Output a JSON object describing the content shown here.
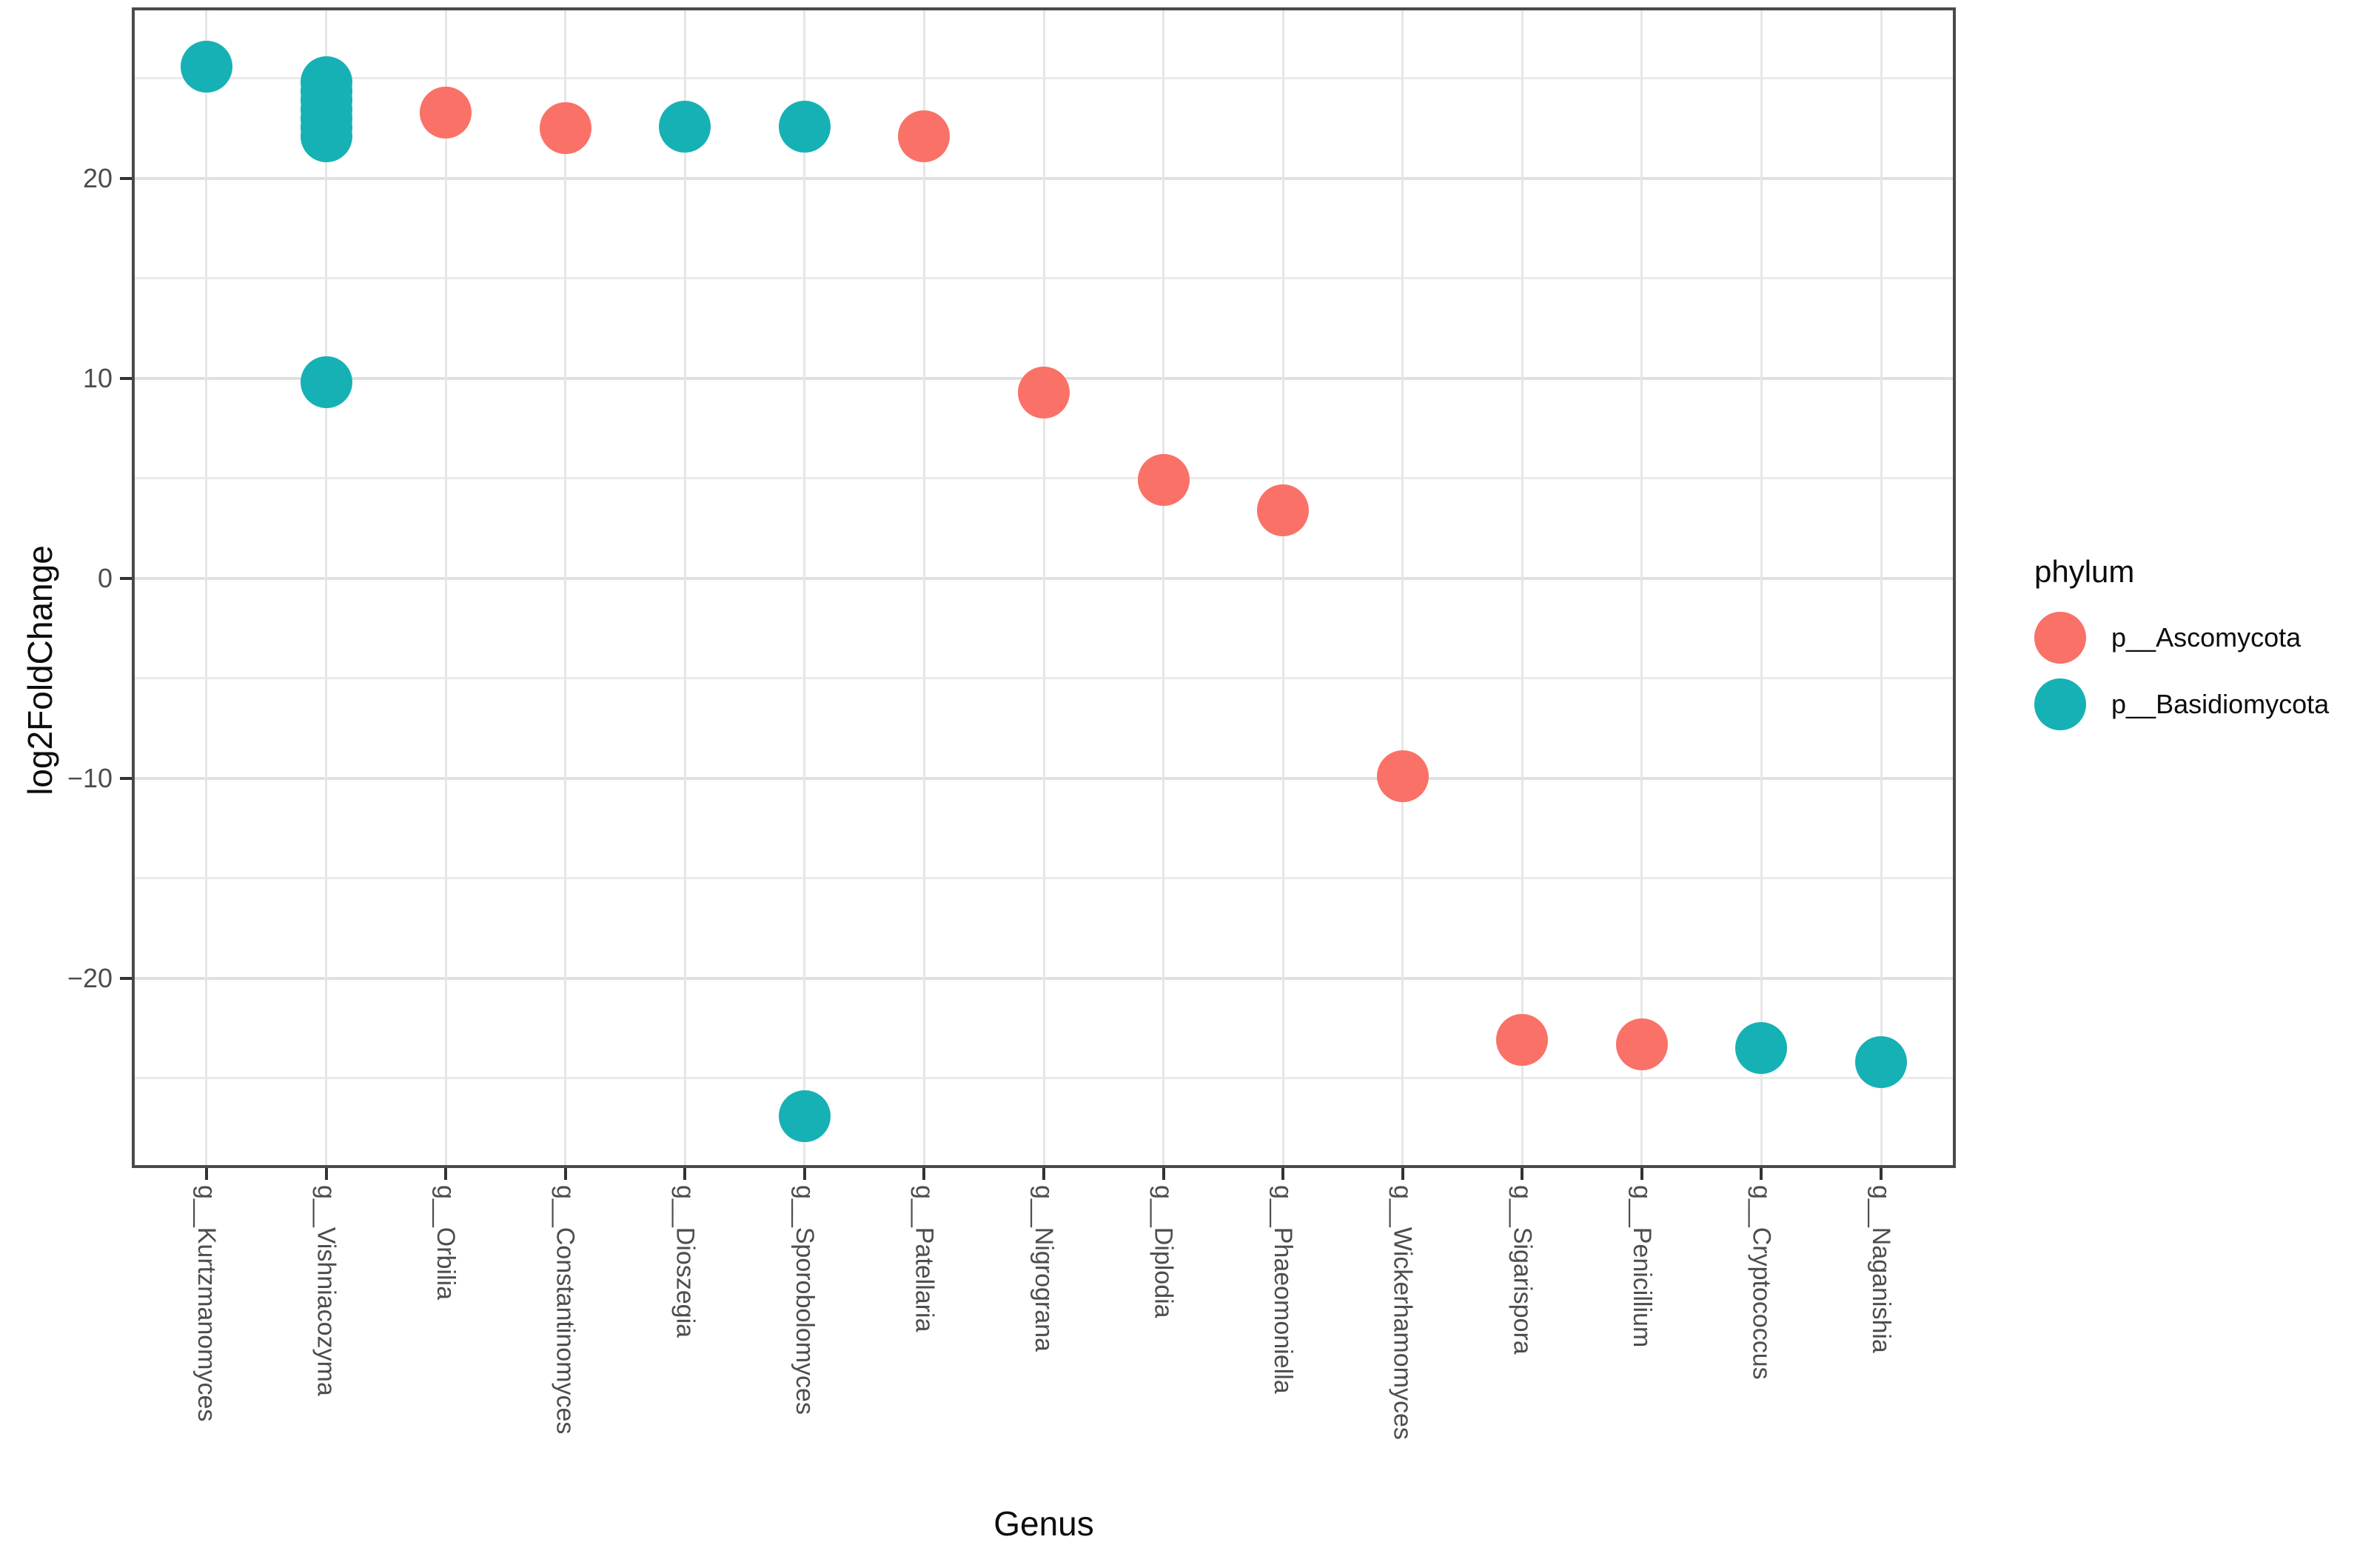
{
  "chart_data": {
    "type": "scatter",
    "title": "",
    "xlabel": "Genus",
    "ylabel": "log2FoldChange",
    "grid": "on",
    "ylim": [
      -29.35,
      28.4
    ],
    "y_ticks": [
      {
        "value": 20,
        "label": "20"
      },
      {
        "value": 10,
        "label": "10"
      },
      {
        "value": 0,
        "label": "0"
      },
      {
        "value": -10,
        "label": "−10"
      },
      {
        "value": -20,
        "label": "−20"
      }
    ],
    "y_minor_ticks": [
      25,
      15,
      5,
      -5,
      -15,
      -25
    ],
    "categories": [
      "g__Kurtzmanomyces",
      "g__Vishniacozyma",
      "g__Orbilia",
      "g__Constantinomyces",
      "g__Dioszegia",
      "g__Sporobolomyces",
      "g__Patellaria",
      "g__Nigrograna",
      "g__Diplodia",
      "g__Phaeomoniella",
      "g__Wickerhamomyces",
      "g__Sigarispora",
      "g__Penicillium",
      "g__Cryptococcus",
      "g__Naganishia"
    ],
    "legend": {
      "title": "phylum",
      "position": "right"
    },
    "series": [
      {
        "name": "p__Ascomycota",
        "color": "#FA7167",
        "points": [
          {
            "genus": "g__Orbilia",
            "value": 23.3
          },
          {
            "genus": "g__Constantinomyces",
            "value": 22.5
          },
          {
            "genus": "g__Patellaria",
            "value": 22.1
          },
          {
            "genus": "g__Nigrograna",
            "value": 9.3
          },
          {
            "genus": "g__Diplodia",
            "value": 4.9
          },
          {
            "genus": "g__Phaeomoniella",
            "value": 3.4
          },
          {
            "genus": "g__Wickerhamomyces",
            "value": -9.9
          },
          {
            "genus": "g__Sigarispora",
            "value": -23.1
          },
          {
            "genus": "g__Penicillium",
            "value": -23.3
          }
        ]
      },
      {
        "name": "p__Basidiomycota",
        "color": "#16B1B5",
        "points": [
          {
            "genus": "g__Kurtzmanomyces",
            "value": 25.6
          },
          {
            "genus": "g__Vishniacozyma",
            "value": 24.8
          },
          {
            "genus": "g__Vishniacozyma",
            "value": 24.35
          },
          {
            "genus": "g__Vishniacozyma",
            "value": 23.9
          },
          {
            "genus": "g__Vishniacozyma",
            "value": 23.45
          },
          {
            "genus": "g__Vishniacozyma",
            "value": 23.0
          },
          {
            "genus": "g__Vishniacozyma",
            "value": 22.55
          },
          {
            "genus": "g__Vishniacozyma",
            "value": 22.1
          },
          {
            "genus": "g__Vishniacozyma",
            "value": 9.8
          },
          {
            "genus": "g__Dioszegia",
            "value": 22.6
          },
          {
            "genus": "g__Sporobolomyces",
            "value": 22.6
          },
          {
            "genus": "g__Sporobolomyces",
            "value": -26.9
          },
          {
            "genus": "g__Cryptococcus",
            "value": -23.5
          },
          {
            "genus": "g__Naganishia",
            "value": -24.2
          }
        ]
      }
    ]
  }
}
